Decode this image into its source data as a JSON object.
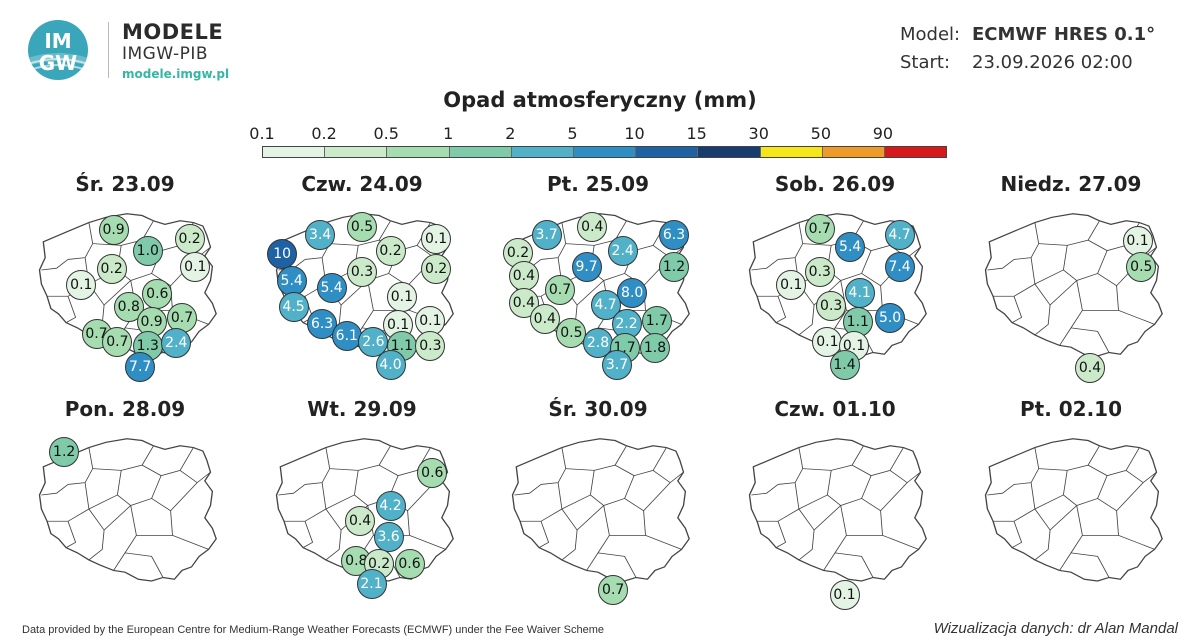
{
  "header": {
    "logo_text_top": "IM",
    "logo_text_bottom": "GW",
    "brand_title": "MODELE",
    "brand_subtitle": "IMGW-PIB",
    "brand_url": "modele.imgw.pl",
    "model_label": "Model:",
    "model_value": "ECMWF HRES 0.1°",
    "start_label": "Start:",
    "start_value": "23.09.2026 02:00"
  },
  "legend": {
    "title": "Opad atmosferyczny (mm)",
    "ticks": [
      "0.1",
      "0.2",
      "0.5",
      "1",
      "2",
      "5",
      "10",
      "15",
      "30",
      "50",
      "90"
    ],
    "colors": [
      "#e3f3e4",
      "#cbeaca",
      "#a5dcb0",
      "#7ecaa9",
      "#51b1c9",
      "#2f8fc4",
      "#1e62a3",
      "#163d6e",
      "#f5e61c",
      "#ee9b2a",
      "#d7191c"
    ]
  },
  "colors": {
    "map_fill": "#ffffff",
    "map_border": "#444444",
    "marker_border": "#333333"
  },
  "days": [
    {
      "title": "Śr. 23.09",
      "markers": [
        {
          "v": "0.9",
          "x": 0.44,
          "y": 0.17
        },
        {
          "v": "1.0",
          "x": 0.62,
          "y": 0.31
        },
        {
          "v": "0.2",
          "x": 0.84,
          "y": 0.23
        },
        {
          "v": "0.2",
          "x": 0.43,
          "y": 0.43
        },
        {
          "v": "0.1",
          "x": 0.87,
          "y": 0.42
        },
        {
          "v": "0.1",
          "x": 0.27,
          "y": 0.54
        },
        {
          "v": "0.6",
          "x": 0.67,
          "y": 0.6
        },
        {
          "v": "0.8",
          "x": 0.52,
          "y": 0.69
        },
        {
          "v": "0.9",
          "x": 0.64,
          "y": 0.79
        },
        {
          "v": "0.7",
          "x": 0.8,
          "y": 0.76
        },
        {
          "v": "0.7",
          "x": 0.35,
          "y": 0.87
        },
        {
          "v": "0.7",
          "x": 0.46,
          "y": 0.92
        },
        {
          "v": "1.3",
          "x": 0.62,
          "y": 0.95
        },
        {
          "v": "2.4",
          "x": 0.77,
          "y": 0.93
        },
        {
          "v": "7.7",
          "x": 0.58,
          "y": 1.09
        }
      ]
    },
    {
      "title": "Czw. 24.09",
      "markers": [
        {
          "v": "3.4",
          "x": 0.28,
          "y": 0.2
        },
        {
          "v": "0.5",
          "x": 0.5,
          "y": 0.15
        },
        {
          "v": "10",
          "x": 0.08,
          "y": 0.33
        },
        {
          "v": "0.2",
          "x": 0.65,
          "y": 0.31
        },
        {
          "v": "0.1",
          "x": 0.89,
          "y": 0.23
        },
        {
          "v": "0.3",
          "x": 0.5,
          "y": 0.45
        },
        {
          "v": "0.2",
          "x": 0.89,
          "y": 0.43
        },
        {
          "v": "5.4",
          "x": 0.13,
          "y": 0.51
        },
        {
          "v": "5.4",
          "x": 0.34,
          "y": 0.56
        },
        {
          "v": "0.1",
          "x": 0.71,
          "y": 0.62
        },
        {
          "v": "4.5",
          "x": 0.14,
          "y": 0.69
        },
        {
          "v": "6.3",
          "x": 0.29,
          "y": 0.8
        },
        {
          "v": "0.1",
          "x": 0.69,
          "y": 0.81
        },
        {
          "v": "0.1",
          "x": 0.86,
          "y": 0.78
        },
        {
          "v": "6.1",
          "x": 0.42,
          "y": 0.88
        },
        {
          "v": "2.6",
          "x": 0.56,
          "y": 0.92
        },
        {
          "v": "1.1",
          "x": 0.71,
          "y": 0.95
        },
        {
          "v": "0.3",
          "x": 0.86,
          "y": 0.95
        },
        {
          "v": "4.0",
          "x": 0.65,
          "y": 1.08
        }
      ]
    },
    {
      "title": "Pt. 25.09",
      "markers": [
        {
          "v": "3.7",
          "x": 0.23,
          "y": 0.2
        },
        {
          "v": "0.4",
          "x": 0.47,
          "y": 0.15
        },
        {
          "v": "6.3",
          "x": 0.9,
          "y": 0.2
        },
        {
          "v": "0.2",
          "x": 0.06,
          "y": 0.32
        },
        {
          "v": "2.4",
          "x": 0.63,
          "y": 0.31
        },
        {
          "v": "9.7",
          "x": 0.44,
          "y": 0.42
        },
        {
          "v": "1.2",
          "x": 0.9,
          "y": 0.42
        },
        {
          "v": "0.4",
          "x": 0.11,
          "y": 0.48
        },
        {
          "v": "0.7",
          "x": 0.3,
          "y": 0.57
        },
        {
          "v": "8.0",
          "x": 0.68,
          "y": 0.59
        },
        {
          "v": "0.4",
          "x": 0.11,
          "y": 0.66
        },
        {
          "v": "4.7",
          "x": 0.54,
          "y": 0.67
        },
        {
          "v": "0.4",
          "x": 0.22,
          "y": 0.77
        },
        {
          "v": "2.2",
          "x": 0.65,
          "y": 0.8
        },
        {
          "v": "1.7",
          "x": 0.81,
          "y": 0.78
        },
        {
          "v": "0.5",
          "x": 0.36,
          "y": 0.86
        },
        {
          "v": "2.8",
          "x": 0.5,
          "y": 0.93
        },
        {
          "v": "1.7",
          "x": 0.64,
          "y": 0.96
        },
        {
          "v": "1.8",
          "x": 0.8,
          "y": 0.96
        },
        {
          "v": "3.7",
          "x": 0.6,
          "y": 1.08
        }
      ]
    },
    {
      "title": "Sob. 26.09",
      "markers": [
        {
          "v": "0.7",
          "x": 0.42,
          "y": 0.16
        },
        {
          "v": "5.4",
          "x": 0.58,
          "y": 0.28
        },
        {
          "v": "4.7",
          "x": 0.84,
          "y": 0.2
        },
        {
          "v": "0.3",
          "x": 0.42,
          "y": 0.45
        },
        {
          "v": "7.4",
          "x": 0.84,
          "y": 0.42
        },
        {
          "v": "0.1",
          "x": 0.27,
          "y": 0.54
        },
        {
          "v": "4.1",
          "x": 0.63,
          "y": 0.59
        },
        {
          "v": "0.3",
          "x": 0.48,
          "y": 0.68
        },
        {
          "v": "1.1",
          "x": 0.62,
          "y": 0.79
        },
        {
          "v": "5.0",
          "x": 0.79,
          "y": 0.76
        },
        {
          "v": "0.1",
          "x": 0.46,
          "y": 0.92
        },
        {
          "v": "0.1",
          "x": 0.6,
          "y": 0.95
        },
        {
          "v": "1.4",
          "x": 0.55,
          "y": 1.08
        }
      ]
    },
    {
      "title": "Niedz. 27.09",
      "markers": [
        {
          "v": "0.1",
          "x": 0.85,
          "y": 0.24
        },
        {
          "v": "0.5",
          "x": 0.87,
          "y": 0.42
        },
        {
          "v": "0.4",
          "x": 0.6,
          "y": 1.1
        }
      ]
    },
    {
      "title": "Pon. 28.09",
      "markers": [
        {
          "v": "1.2",
          "x": 0.18,
          "y": 0.15
        }
      ]
    },
    {
      "title": "Wt. 29.09",
      "markers": [
        {
          "v": "0.6",
          "x": 0.87,
          "y": 0.29
        },
        {
          "v": "4.2",
          "x": 0.65,
          "y": 0.51
        },
        {
          "v": "0.4",
          "x": 0.49,
          "y": 0.61
        },
        {
          "v": "3.6",
          "x": 0.64,
          "y": 0.72
        },
        {
          "v": "0.8",
          "x": 0.47,
          "y": 0.88
        },
        {
          "v": "0.2",
          "x": 0.59,
          "y": 0.9
        },
        {
          "v": "0.6",
          "x": 0.75,
          "y": 0.9
        },
        {
          "v": "2.1",
          "x": 0.55,
          "y": 1.04
        }
      ]
    },
    {
      "title": "Śr. 30.09",
      "markers": [
        {
          "v": "0.7",
          "x": 0.58,
          "y": 1.08
        }
      ]
    },
    {
      "title": "Czw. 01.10",
      "markers": [
        {
          "v": "0.1",
          "x": 0.55,
          "y": 1.11
        }
      ]
    },
    {
      "title": "Pt. 02.10",
      "markers": []
    }
  ],
  "footer": {
    "credit_left": "Data provided by the European Centre for Medium-Range Weather Forecasts (ECMWF) under the Fee Waiver Scheme",
    "credit_right": "Wizualizacja danych: dr Alan Mandal"
  }
}
